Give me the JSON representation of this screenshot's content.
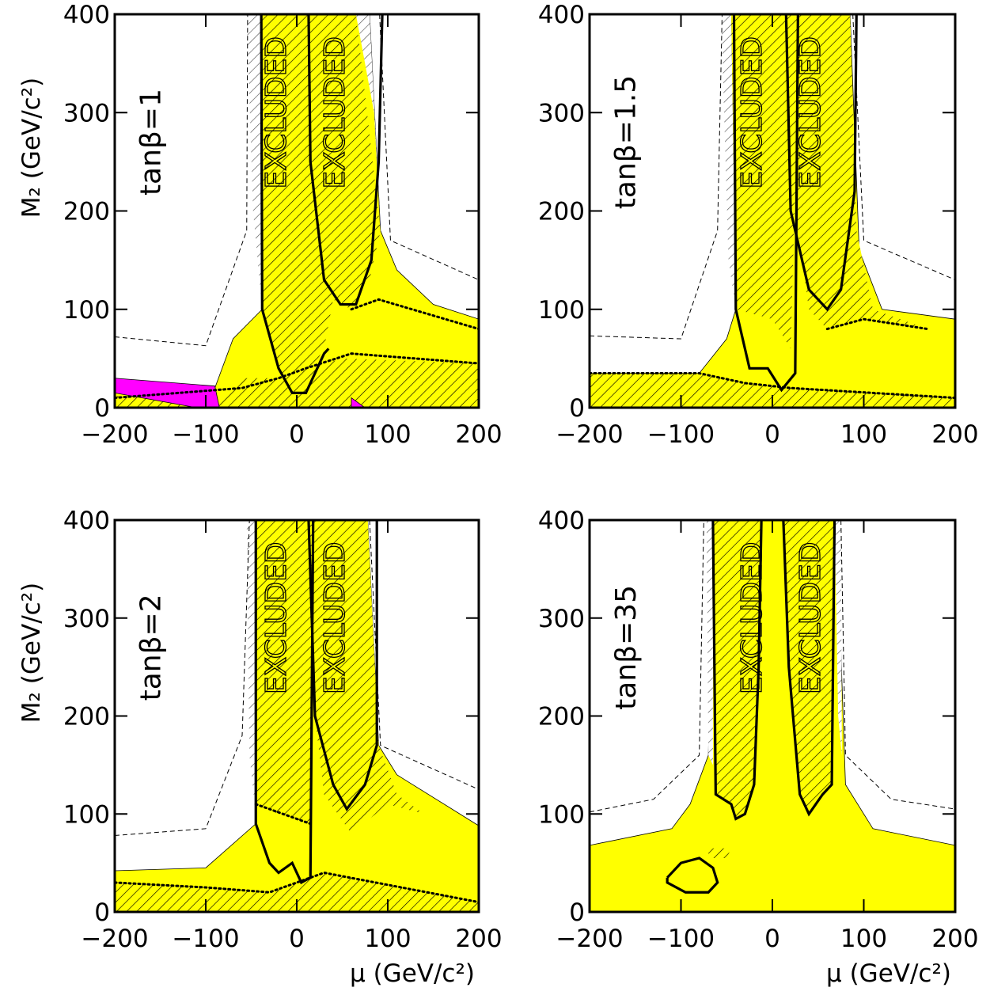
{
  "chart_data": [
    {
      "type": "region",
      "annotation": "tanβ=1",
      "region_labels": [
        "EXCLUDED",
        "EXCLUDED"
      ],
      "ylabel": "M₂ (GeV/c²)",
      "xlim": [
        -200,
        200
      ],
      "ylim": [
        0,
        400
      ],
      "xticks": [
        {
          "value": -200,
          "label": "−200"
        },
        {
          "value": -100,
          "label": "−100"
        },
        0,
        100,
        200
      ],
      "yticks": [
        0,
        100,
        200,
        300,
        400
      ],
      "areas": [
        {
          "color": "#ffff00",
          "hatch": false,
          "x": [
            -38,
            -38,
            -70,
            -90,
            -200,
            -200,
            200,
            200,
            150,
            110,
            92,
            80
          ],
          "y": [
            400,
            100,
            70,
            20,
            20,
            0,
            0,
            90,
            105,
            140,
            180,
            400
          ]
        },
        {
          "color": "#ffffff",
          "hatch": true,
          "x": [
            -55,
            -38,
            -38,
            -48
          ],
          "y": [
            400,
            400,
            100,
            200
          ]
        },
        {
          "color": "#ffffff",
          "hatch": true,
          "x": [
            65,
            80,
            92,
            85
          ],
          "y": [
            400,
            400,
            180,
            300
          ]
        },
        {
          "color": "#ffff00",
          "hatch": true,
          "x": [
            -38,
            65,
            92,
            80,
            60,
            40,
            30,
            0,
            -20,
            -38
          ],
          "y": [
            400,
            400,
            180,
            130,
            100,
            110,
            60,
            15,
            40,
            100
          ]
        },
        {
          "color": "#ffff00",
          "hatch": true,
          "x": [
            -200,
            -80,
            -60,
            -20,
            50,
            200,
            200,
            -200
          ],
          "y": [
            12,
            10,
            30,
            30,
            50,
            45,
            0,
            0
          ]
        },
        {
          "color": "#ff00ff",
          "hatch": false,
          "x": [
            -200,
            -90,
            -85,
            -110,
            -200
          ],
          "y": [
            30,
            22,
            0,
            0,
            15
          ]
        },
        {
          "color": "#ff00ff",
          "hatch": false,
          "x": [
            60,
            75,
            60
          ],
          "y": [
            10,
            0,
            0
          ]
        }
      ],
      "lines": [
        {
          "style": "dashed",
          "x": [
            -200,
            -100,
            -55,
            -54
          ],
          "y": [
            72,
            63,
            180,
            400
          ]
        },
        {
          "style": "dashed",
          "x": [
            91,
            103,
            200
          ],
          "y": [
            400,
            170,
            130
          ]
        },
        {
          "style": "dotted",
          "x": [
            -200,
            -60,
            -20,
            10,
            60,
            200
          ],
          "y": [
            10,
            20,
            30,
            40,
            55,
            45
          ]
        },
        {
          "style": "dotted",
          "x": [
            60,
            90,
            200
          ],
          "y": [
            100,
            110,
            80
          ]
        },
        {
          "style": "solid",
          "x": [
            -39,
            -38,
            -20,
            -5,
            10,
            30,
            35
          ],
          "y": [
            400,
            100,
            40,
            15,
            15,
            55,
            60
          ]
        },
        {
          "style": "solid",
          "x": [
            13,
            15,
            30,
            48,
            65,
            82,
            90,
            94
          ],
          "y": [
            400,
            250,
            130,
            105,
            105,
            150,
            250,
            400
          ]
        }
      ]
    },
    {
      "type": "region",
      "annotation": "tanβ=1.5",
      "region_labels": [
        "EXCLUDED",
        "EXCLUDED"
      ],
      "xlim": [
        -200,
        200
      ],
      "ylim": [
        0,
        400
      ],
      "xticks": [
        {
          "value": -200,
          "label": "−200"
        },
        {
          "value": -100,
          "label": "−100"
        },
        0,
        100,
        200
      ],
      "yticks": [
        0,
        100,
        200,
        300,
        400
      ],
      "areas": [
        {
          "color": "#ffff00",
          "hatch": false,
          "x": [
            -45,
            -40,
            -50,
            -80,
            -200,
            -200,
            200,
            200,
            120,
            95,
            85
          ],
          "y": [
            400,
            100,
            70,
            35,
            35,
            0,
            0,
            90,
            100,
            160,
            400
          ]
        },
        {
          "color": "#ffffff",
          "hatch": true,
          "x": [
            -56,
            -45,
            -40,
            -48
          ],
          "y": [
            400,
            400,
            100,
            150
          ]
        },
        {
          "color": "#ffffff",
          "hatch": true,
          "x": [
            68,
            85,
            92,
            86
          ],
          "y": [
            400,
            400,
            180,
            260
          ]
        },
        {
          "color": "#ffff00",
          "hatch": true,
          "x": [
            -45,
            30,
            20,
            0,
            -40
          ],
          "y": [
            400,
            400,
            60,
            90,
            100
          ]
        },
        {
          "color": "#ffff00",
          "hatch": true,
          "x": [
            20,
            85,
            92,
            110,
            170,
            100,
            60,
            40,
            25
          ],
          "y": [
            400,
            400,
            180,
            100,
            80,
            90,
            80,
            100,
            200
          ]
        },
        {
          "color": "#ffff00",
          "hatch": true,
          "x": [
            -200,
            -80,
            -30,
            20,
            200,
            200,
            -200
          ],
          "y": [
            35,
            35,
            25,
            20,
            10,
            0,
            0
          ]
        }
      ],
      "lines": [
        {
          "style": "dashed",
          "x": [
            -200,
            -100,
            -60,
            -55
          ],
          "y": [
            73,
            70,
            180,
            400
          ]
        },
        {
          "style": "dashed",
          "x": [
            88,
            100,
            200
          ],
          "y": [
            400,
            170,
            130
          ]
        },
        {
          "style": "dotted",
          "x": [
            -200,
            -80,
            -30,
            20,
            200
          ],
          "y": [
            35,
            35,
            25,
            20,
            10
          ]
        },
        {
          "style": "dotted",
          "x": [
            60,
            100,
            170
          ],
          "y": [
            80,
            90,
            80
          ]
        },
        {
          "style": "solid",
          "x": [
            -42,
            -40,
            -25,
            -5,
            10,
            25,
            28
          ],
          "y": [
            400,
            100,
            40,
            40,
            18,
            35,
            400
          ]
        },
        {
          "style": "solid",
          "x": [
            15,
            20,
            40,
            60,
            75,
            90,
            92
          ],
          "y": [
            400,
            200,
            120,
            100,
            120,
            220,
            400
          ]
        }
      ]
    },
    {
      "type": "region",
      "annotation": "tanβ=2",
      "region_labels": [
        "EXCLUDED",
        "EXCLUDED"
      ],
      "ylabel": "M₂ (GeV/c²)",
      "xlabel": "μ (GeV/c²)",
      "xlim": [
        -200,
        200
      ],
      "ylim": [
        0,
        400
      ],
      "xticks": [
        {
          "value": -200,
          "label": "−200"
        },
        {
          "value": -100,
          "label": "−100"
        },
        0,
        100,
        200
      ],
      "yticks": [
        0,
        100,
        200,
        300,
        400
      ],
      "areas": [
        {
          "color": "#ffff00",
          "hatch": false,
          "x": [
            -45,
            -45,
            -100,
            -200,
            -200,
            200,
            200,
            110,
            90,
            78
          ],
          "y": [
            400,
            90,
            45,
            42,
            0,
            0,
            88,
            140,
            170,
            400
          ]
        },
        {
          "color": "#ffffff",
          "hatch": true,
          "x": [
            -55,
            -45,
            -45,
            -52
          ],
          "y": [
            400,
            400,
            100,
            160
          ]
        },
        {
          "color": "#ffffff",
          "hatch": true,
          "x": [
            65,
            78,
            90,
            85
          ],
          "y": [
            400,
            400,
            170,
            250
          ]
        },
        {
          "color": "#ffff00",
          "hatch": true,
          "x": [
            -45,
            18,
            15,
            -20,
            -45
          ],
          "y": [
            400,
            400,
            90,
            100,
            110
          ]
        },
        {
          "color": "#ffff00",
          "hatch": true,
          "x": [
            13,
            78,
            90,
            110,
            140,
            100,
            60,
            30,
            20
          ],
          "y": [
            400,
            400,
            170,
            120,
            100,
            110,
            80,
            120,
            200
          ]
        },
        {
          "color": "#ffff00",
          "hatch": true,
          "x": [
            -200,
            -100,
            -30,
            30,
            200,
            200,
            -200
          ],
          "y": [
            30,
            25,
            20,
            40,
            10,
            0,
            0
          ]
        }
      ],
      "lines": [
        {
          "style": "dashed",
          "x": [
            -200,
            -100,
            -60,
            -52
          ],
          "y": [
            78,
            85,
            180,
            400
          ]
        },
        {
          "style": "dashed",
          "x": [
            80,
            92,
            200
          ],
          "y": [
            400,
            170,
            125
          ]
        },
        {
          "style": "dotted",
          "x": [
            -200,
            -100,
            -30,
            30,
            200
          ],
          "y": [
            30,
            25,
            20,
            40,
            10
          ]
        },
        {
          "style": "dotted",
          "x": [
            -45,
            15
          ],
          "y": [
            110,
            90
          ]
        },
        {
          "style": "solid",
          "x": [
            -45,
            -45,
            -30,
            -20,
            -5,
            5,
            15,
            18
          ],
          "y": [
            400,
            90,
            50,
            40,
            50,
            30,
            35,
            400
          ]
        },
        {
          "style": "solid",
          "x": [
            13,
            20,
            40,
            55,
            75,
            88,
            88
          ],
          "y": [
            400,
            200,
            130,
            105,
            130,
            170,
            400
          ]
        }
      ]
    },
    {
      "type": "region",
      "annotation": "tanβ=35",
      "region_labels": [
        "EXCLUDED",
        "EXCLUDED"
      ],
      "xlabel": "μ (GeV/c²)",
      "xlim": [
        -200,
        200
      ],
      "ylim": [
        0,
        400
      ],
      "xticks": [
        {
          "value": -200,
          "label": "−200"
        },
        {
          "value": -100,
          "label": "−100"
        },
        0,
        100,
        200
      ],
      "yticks": [
        0,
        100,
        200,
        300,
        400
      ],
      "areas": [
        {
          "color": "#ffff00",
          "hatch": false,
          "x": [
            -65,
            -70,
            -90,
            -110,
            -200,
            -200,
            200,
            200,
            110,
            80,
            70
          ],
          "y": [
            400,
            160,
            110,
            85,
            68,
            0,
            0,
            68,
            85,
            130,
            400
          ]
        },
        {
          "color": "#ffffff",
          "hatch": true,
          "x": [
            -72,
            -65,
            -65,
            -70
          ],
          "y": [
            400,
            400,
            150,
            160
          ]
        },
        {
          "color": "#ffffff",
          "hatch": true,
          "x": [
            68,
            75,
            76,
            72
          ],
          "y": [
            400,
            400,
            160,
            200
          ]
        },
        {
          "color": "#ffff00",
          "hatch": true,
          "x": [
            -65,
            -12,
            -15,
            -20,
            -30,
            -40,
            -45,
            -62
          ],
          "y": [
            400,
            400,
            250,
            130,
            100,
            95,
            110,
            120
          ]
        },
        {
          "color": "#ffff00",
          "hatch": true,
          "x": [
            12,
            68,
            65,
            55,
            40,
            30,
            18
          ],
          "y": [
            400,
            400,
            130,
            120,
            100,
            120,
            250
          ]
        },
        {
          "color": "#ffff00",
          "hatch": true,
          "x": [
            -70,
            -45,
            -50,
            -70
          ],
          "y": [
            65,
            65,
            55,
            55
          ]
        }
      ],
      "lines": [
        {
          "style": "dashed",
          "x": [
            -200,
            -130,
            -80,
            -75
          ],
          "y": [
            102,
            115,
            160,
            400
          ]
        },
        {
          "style": "dashed",
          "x": [
            75,
            80,
            130,
            200
          ],
          "y": [
            400,
            160,
            115,
            105
          ]
        },
        {
          "style": "solid",
          "x": [
            -65,
            -62,
            -45,
            -40,
            -30,
            -20,
            -15,
            -12
          ],
          "y": [
            400,
            120,
            110,
            95,
            100,
            130,
            250,
            400
          ]
        },
        {
          "style": "solid",
          "x": [
            12,
            18,
            30,
            40,
            55,
            65,
            68
          ],
          "y": [
            400,
            250,
            120,
            100,
            120,
            130,
            400
          ]
        },
        {
          "style": "solid",
          "x": [
            -115,
            -100,
            -80,
            -65,
            -60,
            -70,
            -95,
            -115,
            -115
          ],
          "y": [
            35,
            50,
            55,
            45,
            30,
            20,
            20,
            30,
            35
          ]
        }
      ]
    }
  ]
}
